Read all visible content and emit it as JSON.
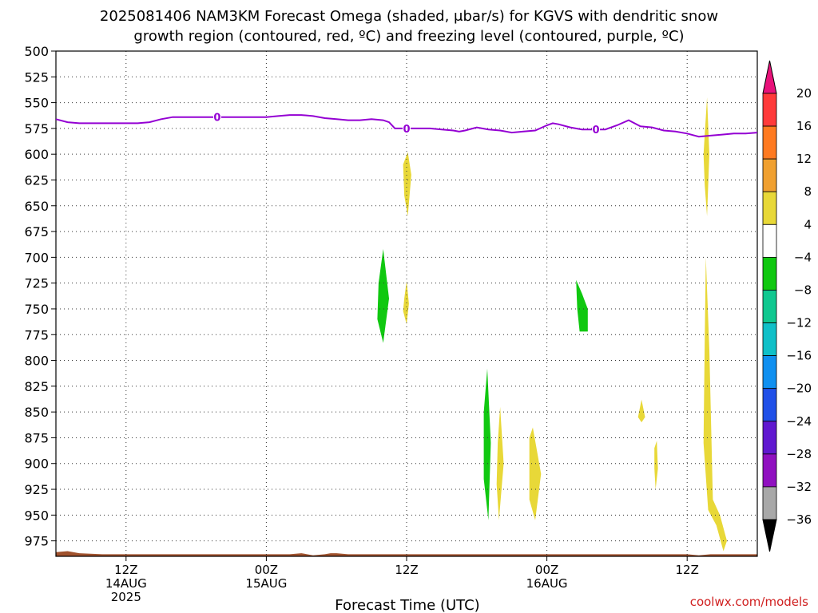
{
  "title_line1": "2025081406 NAM3KM Forecast Omega (shaded, μbar/s) for KGVS with dendritic snow",
  "title_line2": "growth region (contoured, red, ºC) and freezing level (contoured, purple, ºC)",
  "credit": "coolwx.com/models",
  "chart_data": {
    "type": "heatmap",
    "xlabel": "Forecast Time (UTC)",
    "ylabel": "",
    "x_unit": "forecast hour",
    "xlim": [
      0,
      60
    ],
    "y_unit": "hPa",
    "ylim": [
      990,
      500
    ],
    "y_ticks": [
      500,
      525,
      550,
      575,
      600,
      625,
      650,
      675,
      700,
      725,
      750,
      775,
      800,
      825,
      850,
      875,
      900,
      925,
      950,
      975
    ],
    "x_ticks": [
      {
        "hour": 6,
        "lines": [
          "12Z",
          "14AUG",
          "2025"
        ]
      },
      {
        "hour": 18,
        "lines": [
          "00Z",
          "15AUG"
        ]
      },
      {
        "hour": 30,
        "lines": [
          "12Z",
          ""
        ]
      },
      {
        "hour": 42,
        "lines": [
          "00Z",
          "16AUG"
        ]
      },
      {
        "hour": 54,
        "lines": [
          "12Z",
          ""
        ]
      }
    ],
    "grid": true,
    "colorbar": {
      "labels": [
        "20",
        "16",
        "12",
        "8",
        "4",
        "−4",
        "−8",
        "−12",
        "−16",
        "−20",
        "−24",
        "−28",
        "−32",
        "−36"
      ],
      "colors": [
        "#ff3a3a",
        "#ff7a20",
        "#f0a030",
        "#e8d838",
        "#ffffff",
        "#10c810",
        "#10c890",
        "#10c0c8",
        "#1090f0",
        "#2050e8",
        "#6018d0",
        "#9010c0",
        "#a8a8a8"
      ],
      "top_arrow_color": "#e8127a",
      "bottom_arrow_color": "#000000"
    },
    "freezing_level": {
      "label": "0",
      "color": "#9400d3",
      "label_hours": [
        13.8,
        30,
        46.2
      ],
      "points": [
        [
          0,
          566
        ],
        [
          1,
          569
        ],
        [
          2,
          570
        ],
        [
          3,
          570
        ],
        [
          4,
          570
        ],
        [
          5,
          570
        ],
        [
          6,
          570
        ],
        [
          7,
          570
        ],
        [
          8,
          569
        ],
        [
          9,
          566
        ],
        [
          10,
          564
        ],
        [
          11,
          564
        ],
        [
          12,
          564
        ],
        [
          13,
          564
        ],
        [
          14,
          564
        ],
        [
          15,
          564
        ],
        [
          16,
          564
        ],
        [
          17,
          564
        ],
        [
          18,
          564
        ],
        [
          19,
          563
        ],
        [
          20,
          562
        ],
        [
          21,
          562
        ],
        [
          22,
          563
        ],
        [
          23,
          565
        ],
        [
          24,
          566
        ],
        [
          25,
          567
        ],
        [
          26,
          567
        ],
        [
          27,
          566
        ],
        [
          28,
          567
        ],
        [
          28.5,
          569
        ],
        [
          29,
          575
        ],
        [
          30,
          575
        ],
        [
          31,
          575
        ],
        [
          32,
          575
        ],
        [
          33,
          576
        ],
        [
          34,
          577
        ],
        [
          34.5,
          578
        ],
        [
          35,
          577
        ],
        [
          36,
          574
        ],
        [
          37,
          576
        ],
        [
          38,
          577
        ],
        [
          39,
          579
        ],
        [
          40,
          578
        ],
        [
          41,
          577
        ],
        [
          42,
          572
        ],
        [
          42.5,
          570
        ],
        [
          43,
          571
        ],
        [
          44,
          574
        ],
        [
          45,
          576
        ],
        [
          46,
          576
        ],
        [
          47,
          576
        ],
        [
          48,
          572
        ],
        [
          49,
          567
        ],
        [
          50,
          573
        ],
        [
          51,
          574
        ],
        [
          52,
          577
        ],
        [
          53,
          578
        ],
        [
          54,
          580
        ],
        [
          55,
          583
        ],
        [
          56,
          582
        ],
        [
          57,
          581
        ],
        [
          58,
          580
        ],
        [
          59,
          580
        ],
        [
          60,
          579
        ]
      ]
    },
    "omega_regions": [
      {
        "value": 4,
        "color": "#e8d838",
        "points": [
          [
            29.7,
            610
          ],
          [
            30.1,
            598
          ],
          [
            30.4,
            620
          ],
          [
            30.1,
            660
          ],
          [
            29.8,
            640
          ]
        ]
      },
      {
        "value": 4,
        "color": "#e8d838",
        "points": [
          [
            29.8,
            740
          ],
          [
            30,
            723
          ],
          [
            30.2,
            745
          ],
          [
            30,
            765
          ],
          [
            29.7,
            752
          ]
        ]
      },
      {
        "value": -4,
        "color": "#10c810",
        "points": [
          [
            27.6,
            725
          ],
          [
            28,
            692
          ],
          [
            28.5,
            740
          ],
          [
            28,
            783
          ],
          [
            27.5,
            760
          ]
        ]
      },
      {
        "value": -4,
        "color": "#10c810",
        "points": [
          [
            36.6,
            850
          ],
          [
            36.9,
            808
          ],
          [
            37.2,
            880
          ],
          [
            37,
            955
          ],
          [
            36.6,
            915
          ]
        ]
      },
      {
        "value": 4,
        "color": "#e8d838",
        "points": [
          [
            37.8,
            880
          ],
          [
            38,
            845
          ],
          [
            38.3,
            900
          ],
          [
            37.9,
            955
          ],
          [
            37.7,
            920
          ]
        ]
      },
      {
        "value": 4,
        "color": "#e8d838",
        "points": [
          [
            40.5,
            875
          ],
          [
            40.8,
            865
          ],
          [
            41.5,
            910
          ],
          [
            41,
            955
          ],
          [
            40.5,
            935
          ]
        ]
      },
      {
        "value": -4,
        "color": "#10c810",
        "points": [
          [
            44.5,
            722
          ],
          [
            45,
            735
          ],
          [
            45.5,
            750
          ],
          [
            45.5,
            772
          ],
          [
            44.8,
            772
          ],
          [
            44.6,
            750
          ]
        ]
      },
      {
        "value": 4,
        "color": "#e8d838",
        "points": [
          [
            49.8,
            855
          ],
          [
            50.1,
            838
          ],
          [
            50.4,
            855
          ],
          [
            50.1,
            860
          ]
        ]
      },
      {
        "value": 4,
        "color": "#e8d838",
        "points": [
          [
            51.2,
            885
          ],
          [
            51.4,
            878
          ],
          [
            51.5,
            905
          ],
          [
            51.3,
            925
          ],
          [
            51.2,
            905
          ]
        ]
      },
      {
        "value": 4,
        "color": "#e8d838",
        "points": [
          [
            55.4,
            600
          ],
          [
            55.7,
            545
          ],
          [
            55.9,
            600
          ],
          [
            55.7,
            660
          ],
          [
            55.5,
            630
          ]
        ]
      },
      {
        "value": 4,
        "color": "#e8d838",
        "points": [
          [
            55.5,
            780
          ],
          [
            55.6,
            700
          ],
          [
            55.9,
            790
          ],
          [
            56.2,
            935
          ],
          [
            56.8,
            950
          ],
          [
            57.4,
            975
          ],
          [
            57.1,
            985
          ],
          [
            56.5,
            960
          ],
          [
            55.8,
            945
          ],
          [
            55.4,
            880
          ]
        ]
      }
    ],
    "terrain": {
      "color": "#a0522d",
      "points": [
        [
          0,
          986
        ],
        [
          1,
          985
        ],
        [
          2,
          987
        ],
        [
          4,
          988
        ],
        [
          6,
          988
        ],
        [
          8,
          988
        ],
        [
          12,
          988
        ],
        [
          15,
          988
        ],
        [
          18,
          988
        ],
        [
          20,
          988
        ],
        [
          21,
          987
        ],
        [
          22,
          989
        ],
        [
          23,
          988
        ],
        [
          23.5,
          987
        ],
        [
          24,
          987
        ],
        [
          25,
          988
        ],
        [
          28,
          988
        ],
        [
          35,
          988
        ],
        [
          42,
          988
        ],
        [
          50,
          988
        ],
        [
          54,
          988
        ],
        [
          55,
          989
        ],
        [
          56,
          988
        ],
        [
          60,
          988
        ]
      ]
    }
  }
}
